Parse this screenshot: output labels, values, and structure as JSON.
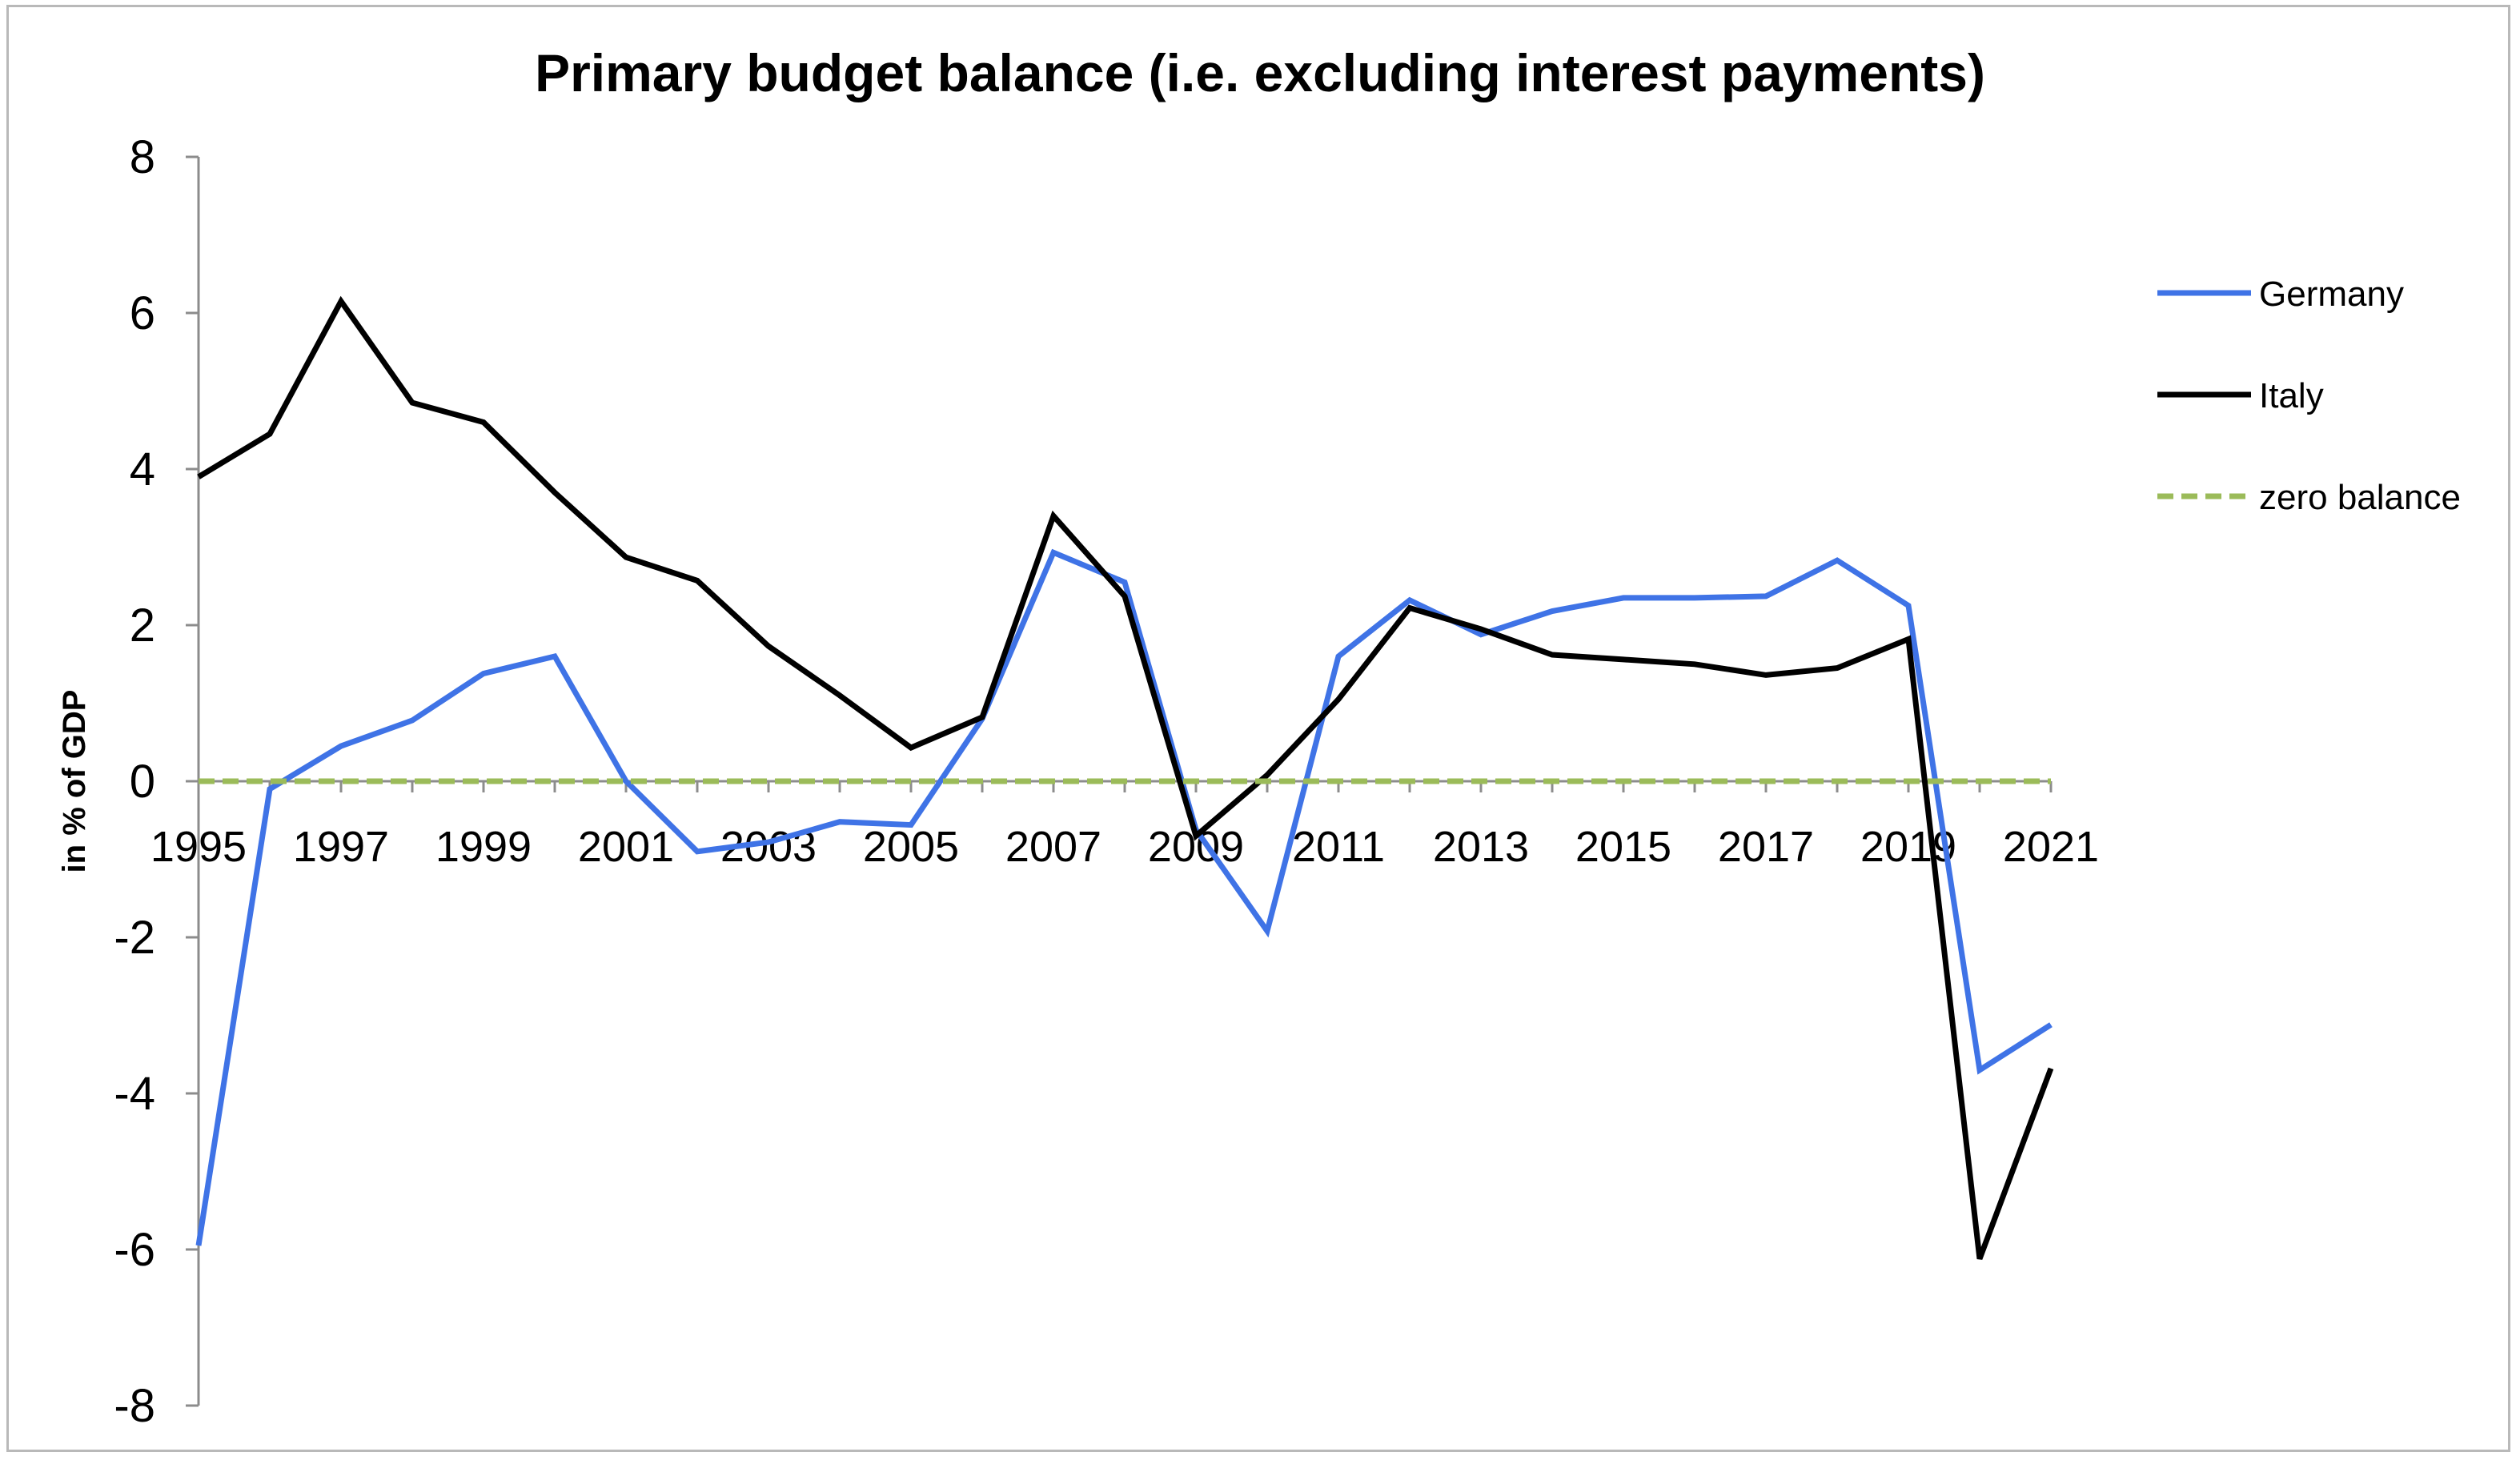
{
  "chart_data": {
    "type": "line",
    "title": "Primary budget balance (i.e. excluding interest payments)",
    "xlabel": "",
    "ylabel": "in % of GDP",
    "x": [
      1995,
      1996,
      1997,
      1998,
      1999,
      2000,
      2001,
      2002,
      2003,
      2004,
      2005,
      2006,
      2007,
      2008,
      2009,
      2010,
      2011,
      2012,
      2013,
      2014,
      2015,
      2016,
      2017,
      2018,
      2019,
      2020,
      2021
    ],
    "x_tick_labels": [
      "1995",
      "1997",
      "1999",
      "2001",
      "2003",
      "2005",
      "2007",
      "2009",
      "2011",
      "2013",
      "2015",
      "2017",
      "2019",
      "2021"
    ],
    "y_tick_labels": [
      "8",
      "6",
      "4",
      "2",
      "0",
      "-2",
      "-4",
      "-6",
      "-8"
    ],
    "ylim": [
      -8,
      8
    ],
    "yticks": [
      8,
      6,
      4,
      2,
      0,
      -2,
      -4,
      -6,
      -8
    ],
    "grid": false,
    "legend_position": "right",
    "series": [
      {
        "name": "Germany",
        "color": "#3f73e6",
        "style": "solid",
        "values": [
          -5.95,
          -0.1,
          0.45,
          0.78,
          1.38,
          1.6,
          0.0,
          -0.9,
          -0.78,
          -0.52,
          -0.56,
          0.8,
          2.93,
          2.55,
          -0.62,
          -1.92,
          1.6,
          2.32,
          1.88,
          2.18,
          2.35,
          2.35,
          2.37,
          2.83,
          2.25,
          -3.7,
          -3.12
        ]
      },
      {
        "name": "Italy",
        "color": "#000000",
        "style": "solid",
        "values": [
          3.9,
          4.45,
          6.15,
          4.85,
          4.6,
          3.7,
          2.87,
          2.57,
          1.73,
          1.1,
          0.43,
          0.82,
          3.4,
          2.37,
          -0.7,
          0.08,
          1.05,
          2.22,
          1.95,
          1.62,
          1.56,
          1.5,
          1.36,
          1.45,
          1.82,
          -6.12,
          -3.68
        ]
      },
      {
        "name": "zero balance",
        "color": "#9bbb59",
        "style": "dashed",
        "values": [
          0,
          0,
          0,
          0,
          0,
          0,
          0,
          0,
          0,
          0,
          0,
          0,
          0,
          0,
          0,
          0,
          0,
          0,
          0,
          0,
          0,
          0,
          0,
          0,
          0,
          0,
          0
        ]
      }
    ]
  }
}
